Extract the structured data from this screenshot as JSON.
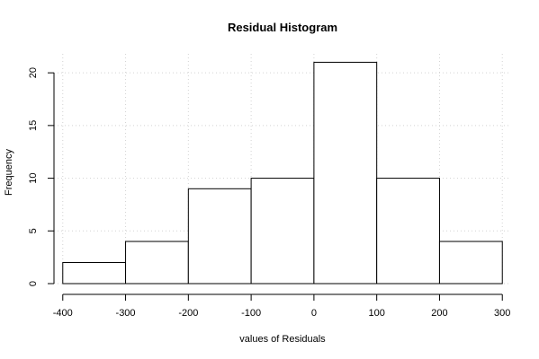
{
  "chart_data": {
    "type": "bar",
    "title": "Residual Histogram",
    "xlabel": "values of Residuals",
    "ylabel": "Frequency",
    "bins": [
      {
        "from": -400,
        "to": -300,
        "count": 2
      },
      {
        "from": -300,
        "to": -200,
        "count": 4
      },
      {
        "from": -200,
        "to": -100,
        "count": 9
      },
      {
        "from": -100,
        "to": 0,
        "count": 10
      },
      {
        "from": 0,
        "to": 100,
        "count": 21
      },
      {
        "from": 100,
        "to": 200,
        "count": 10
      },
      {
        "from": 200,
        "to": 300,
        "count": 4
      }
    ],
    "xlim": [
      -400,
      300
    ],
    "ylim": [
      0,
      21
    ],
    "x_ticks": [
      -400,
      -300,
      -200,
      -100,
      0,
      100,
      200,
      300
    ],
    "y_ticks": [
      0,
      5,
      10,
      15,
      20
    ],
    "grid": true
  }
}
